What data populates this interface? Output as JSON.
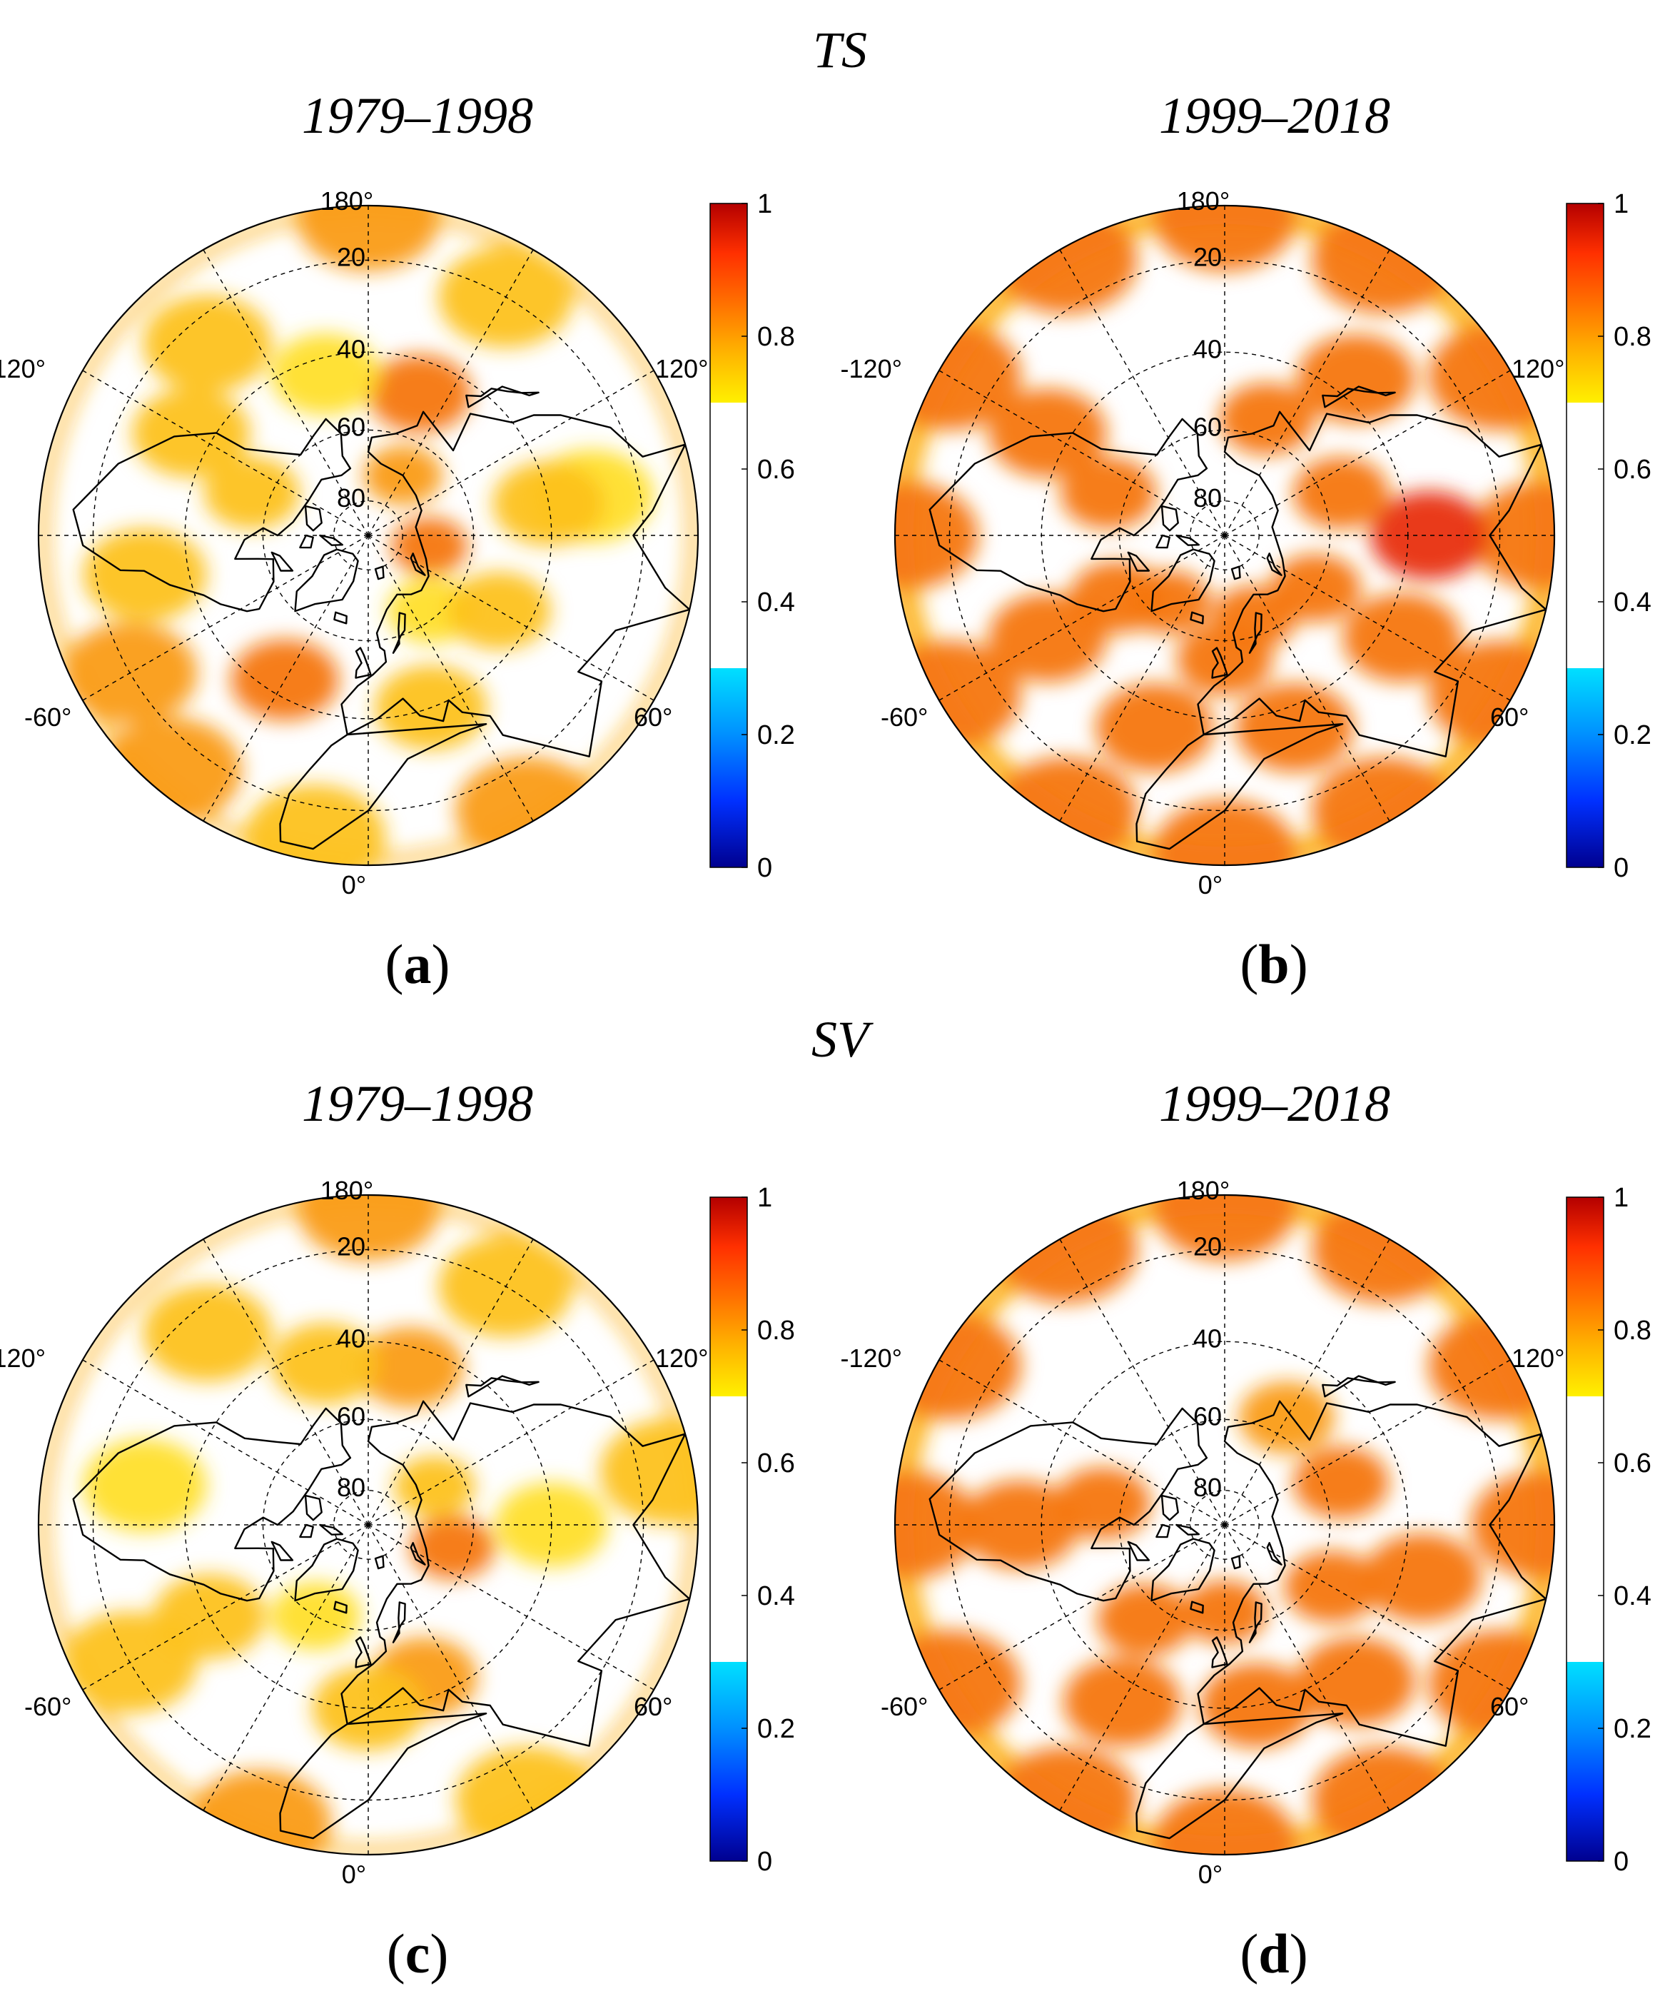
{
  "figure": {
    "rows": [
      {
        "variable": "TS"
      },
      {
        "variable": "SV"
      }
    ],
    "panels": [
      {
        "id": "a",
        "label": "a",
        "period": "1979–1998"
      },
      {
        "id": "b",
        "label": "b",
        "period": "1999–2018"
      },
      {
        "id": "c",
        "label": "c",
        "period": "1979–1998"
      },
      {
        "id": "d",
        "label": "d",
        "period": "1999–2018"
      }
    ]
  },
  "map": {
    "projection": "north polar stereographic, North Pole at center",
    "latitude_circles": [
      "20",
      "40",
      "60",
      "80"
    ],
    "longitude_labels": [
      "180°",
      "120°",
      "60°",
      "0°",
      "-60°",
      "-120°"
    ],
    "gridlines": "dashed",
    "coastlines": true
  },
  "colorbar": {
    "range": [
      0,
      1
    ],
    "ticks": [
      "0",
      "0.2",
      "0.4",
      "0.6",
      "0.8",
      "1"
    ],
    "masked_interval": [
      0.3,
      0.7
    ],
    "masked_color": "#ffffff",
    "colors": {
      "low": [
        "#00008f",
        "#0030ff",
        "#0090ff",
        "#00e0ff"
      ],
      "high": [
        "#fff000",
        "#ffb400",
        "#ff7000",
        "#ff3000",
        "#b40000"
      ]
    }
  }
}
